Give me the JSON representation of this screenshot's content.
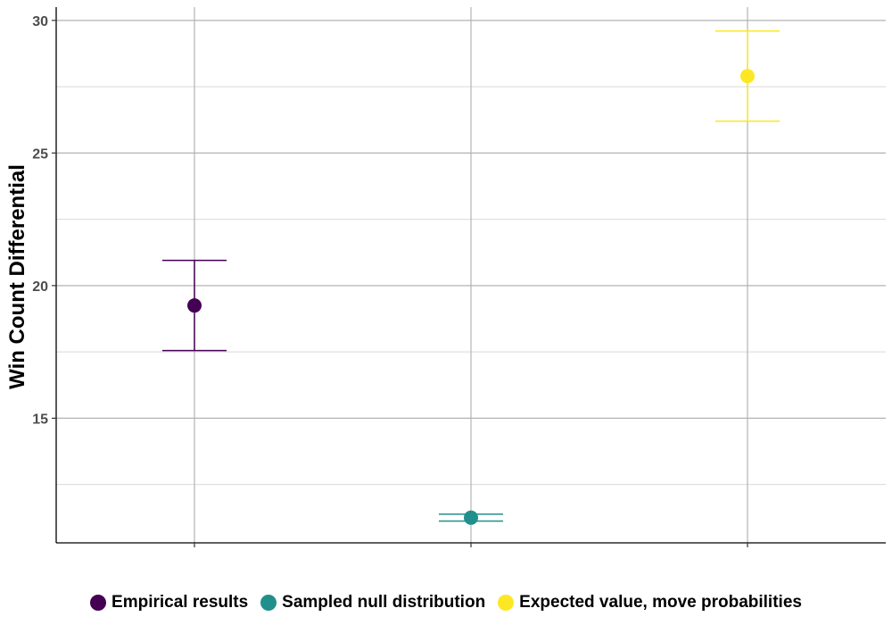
{
  "chart_data": {
    "type": "scatter",
    "title": "",
    "xlabel": "",
    "ylabel": "Win Count Differential",
    "ylim": [
      10.3,
      30.5
    ],
    "yticks": [
      15,
      20,
      25,
      30
    ],
    "yminor": [
      12.5,
      17.5,
      22.5,
      27.5
    ],
    "grid": true,
    "legend_position": "bottom",
    "series": [
      {
        "name": "Empirical results",
        "value": 19.25,
        "lower": 17.55,
        "upper": 20.95,
        "color": "#440154"
      },
      {
        "name": "Sampled null distribution",
        "value": 11.25,
        "lower": 11.12,
        "upper": 11.38,
        "color": "#21908C"
      },
      {
        "name": "Expected value, move probabilities",
        "value": 27.9,
        "lower": 26.2,
        "upper": 29.6,
        "color": "#FDE725"
      }
    ]
  }
}
